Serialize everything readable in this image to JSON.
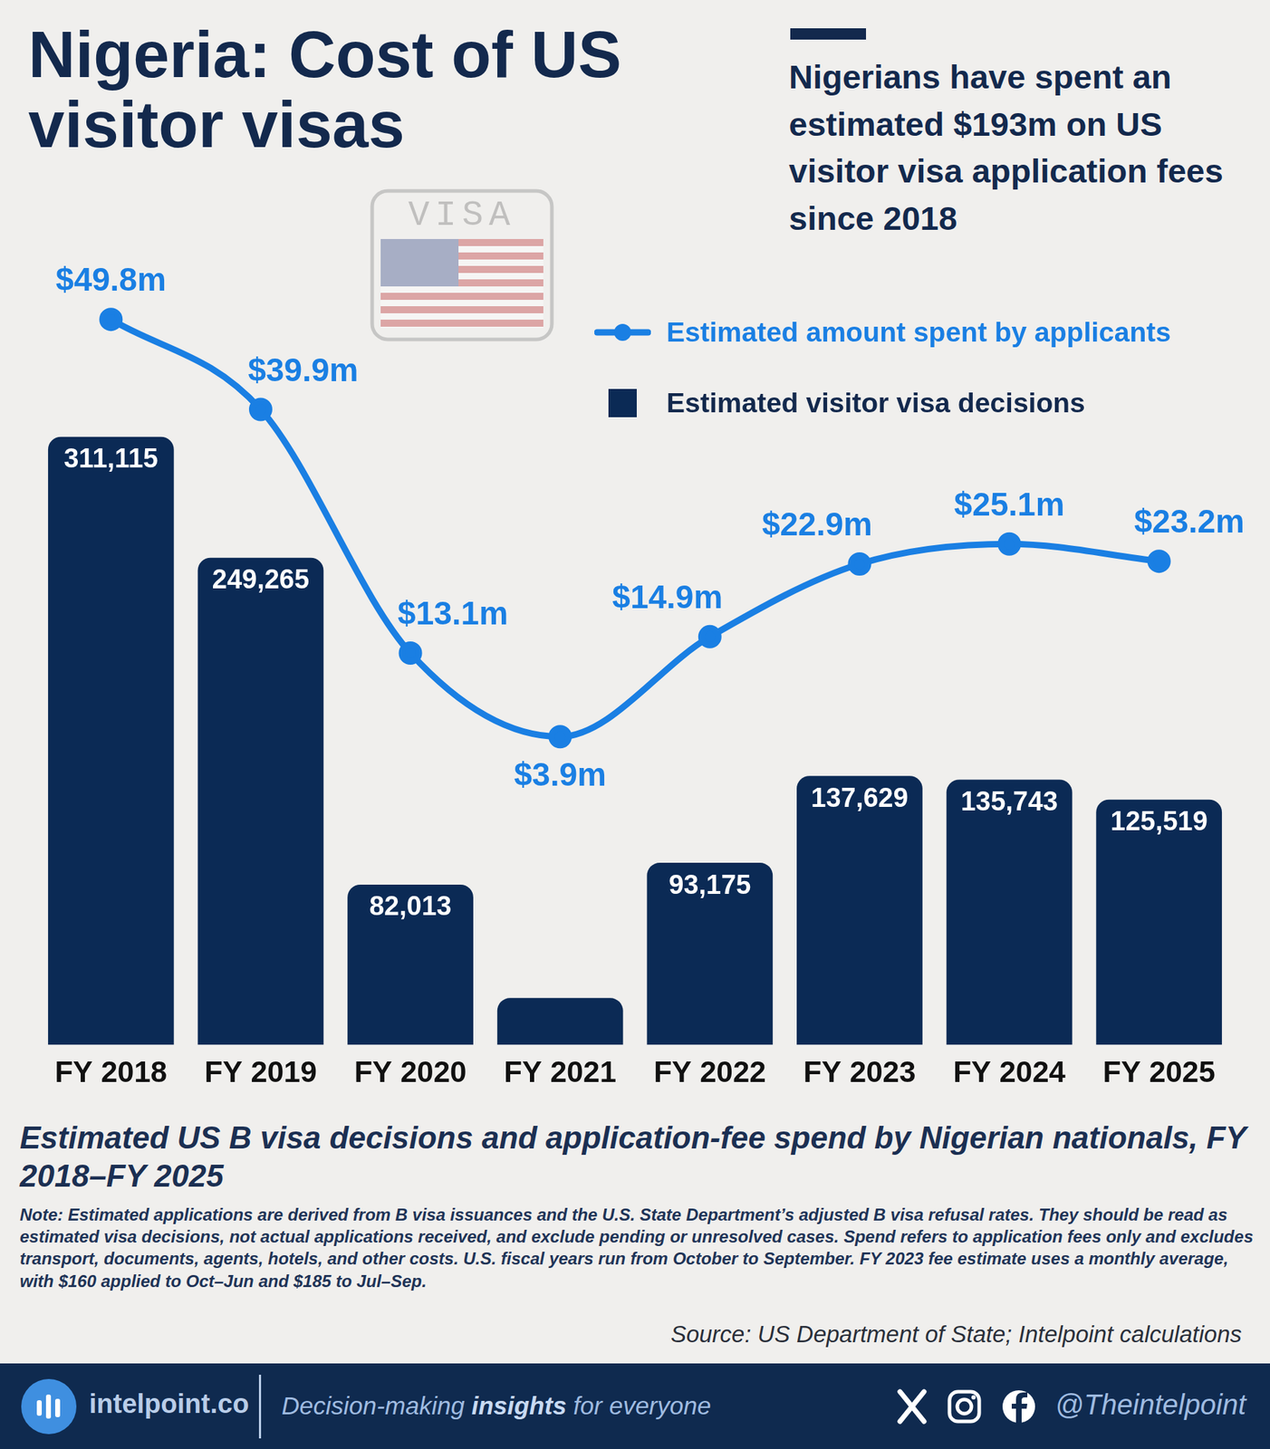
{
  "header": {
    "title": "Nigeria: Cost of US visitor visas",
    "subtitle": "Nigerians have spent an estimated $193m on US visitor visa application fees since 2018",
    "stamp": "VISA"
  },
  "chart_data": {
    "type": "bar",
    "title": "Estimated US B visa decisions and application-fee spend by Nigerian nationals, FY 2018–FY 2025",
    "categories": [
      "FY 2018",
      "FY 2019",
      "FY 2020",
      "FY 2021",
      "FY 2022",
      "FY 2023",
      "FY 2024",
      "FY 2025"
    ],
    "series": [
      {
        "name": "Estimated amount spent by applicants",
        "type": "line",
        "color": "#1a7fe3",
        "marker": "circle",
        "line_style": "solid",
        "axis": "y2",
        "values": [
          49.8,
          39.9,
          13.1,
          3.9,
          14.9,
          22.9,
          25.1,
          23.2
        ],
        "value_labels": [
          "$49.8m",
          "$39.9m",
          "$13.1m",
          "$3.9m",
          "$14.9m",
          "$22.9m",
          "$25.1m",
          "$23.2m"
        ]
      },
      {
        "name": "Estimated visitor visa decisions",
        "type": "bar",
        "color": "#0b2a55",
        "values": [
          311115,
          249265,
          82013,
          24000,
          93175,
          137629,
          135743,
          125519
        ],
        "value_labels": [
          "311,115",
          "249,265",
          "82,013",
          null,
          "93,175",
          "137,629",
          "135,743",
          "125,519"
        ]
      }
    ],
    "ylim": [
      0,
      400000
    ],
    "yticks": [
      0,
      400000
    ],
    "y2lim": [
      -30,
      56
    ],
    "y2ticks": [
      -30,
      56
    ],
    "grid": false,
    "legend": "top-right",
    "data_labels": true,
    "tick_labels": "x"
  },
  "note": "Note: Estimated applications are derived from B visa issuances and the U.S. State Department’s adjusted B visa refusal rates. They should be read as estimated visa decisions, not actual applications received, and exclude pending or unresolved cases. Spend refers to application fees only and excludes transport, documents, agents, hotels, and other costs. U.S. fiscal years run from October to September. FY 2023 fee estimate uses a monthly average, with $160 applied to Oct–Jun and $185 to Jul–Sep.",
  "source": "Source: US Department of State; Intelpoint calculations",
  "footer": {
    "site": "intelpoint.co",
    "tagline": [
      "Decision-making",
      "insights",
      "for everyone"
    ],
    "handle": "@Theintelpoint"
  }
}
